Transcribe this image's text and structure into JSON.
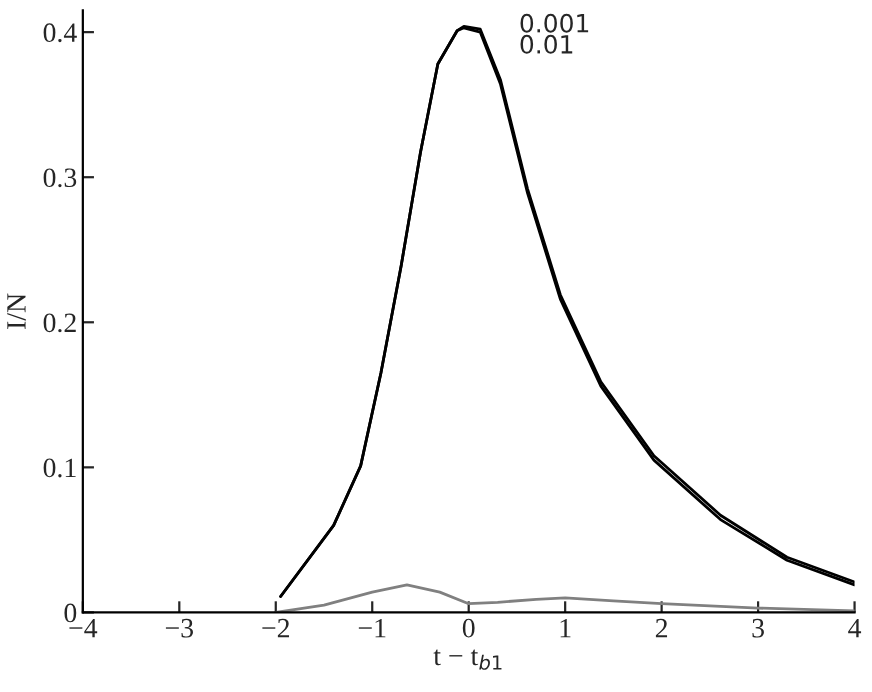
{
  "chart_data": {
    "type": "line",
    "xlabel": "t − t$_{b1}$",
    "ylabel": "I/N",
    "xlim": [
      -4,
      4
    ],
    "ylim": [
      0,
      0.415
    ],
    "xticks": [
      {
        "value": -4,
        "label": "−4"
      },
      {
        "value": -3,
        "label": "−3"
      },
      {
        "value": -2,
        "label": "−2"
      },
      {
        "value": -1,
        "label": "−1"
      },
      0,
      1,
      2,
      3,
      4
    ],
    "yticks": [
      0,
      0.1,
      0.2,
      0.3,
      0.4
    ],
    "grid": false,
    "marker": "none",
    "line_style": "solid",
    "series": [
      {
        "color": "#000000",
        "x": [
          -1.95,
          -1.4,
          -1.12,
          -0.91,
          -0.7,
          -0.5,
          -0.32,
          -0.12,
          -0.05,
          0.12,
          0.33,
          0.61,
          0.95,
          1.37,
          1.92,
          2.61,
          3.3,
          4.0
        ],
        "values": [
          0.011,
          0.06,
          0.101,
          0.165,
          0.239,
          0.317,
          0.378,
          0.401,
          0.403,
          0.4,
          0.364,
          0.289,
          0.216,
          0.156,
          0.105,
          0.064,
          0.036,
          0.019
        ]
      },
      {
        "color": "#000000",
        "x": [
          -1.95,
          -1.4,
          -1.12,
          -0.91,
          -0.7,
          -0.5,
          -0.32,
          -0.12,
          -0.05,
          0.12,
          0.33,
          0.61,
          0.95,
          1.37,
          1.92,
          2.61,
          3.3,
          4.0
        ],
        "values": [
          0.011,
          0.06,
          0.101,
          0.165,
          0.239,
          0.317,
          0.378,
          0.401,
          0.404,
          0.402,
          0.367,
          0.292,
          0.219,
          0.159,
          0.108,
          0.067,
          0.038,
          0.021
        ]
      },
      {
        "color": "#808080",
        "x": [
          -2,
          -1.5,
          -1.0,
          -0.64,
          -0.3,
          0,
          0.3,
          0.7,
          1.0,
          1.5,
          2,
          3,
          4
        ],
        "values": [
          0,
          0.005,
          0.014,
          0.019,
          0.014,
          0.006,
          0.007,
          0.009,
          0.01,
          0.008,
          0.006,
          0.003,
          0.001
        ]
      }
    ],
    "annotations": [
      "0.001",
      "0.01"
    ]
  }
}
